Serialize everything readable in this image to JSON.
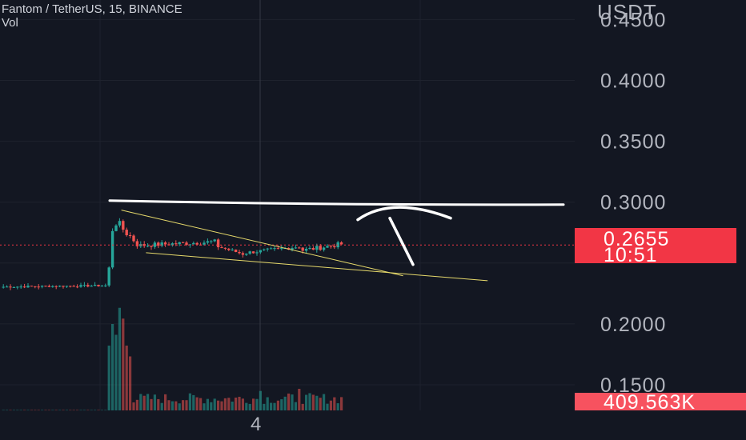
{
  "header": {
    "symbol_line": "Fantom / TetherUS, 15, BINANCE",
    "volume_label": "Vol"
  },
  "price_axis": {
    "title": "USDT",
    "ticks": [
      "0.4500",
      "0.4000",
      "0.3500",
      "0.3000",
      "0.2000",
      "0.1500"
    ]
  },
  "time_axis": {
    "ticks": [
      "4"
    ]
  },
  "last_price_tag": {
    "price": "0.2655",
    "countdown": "10:51"
  },
  "volume_tag": {
    "value": "409.563K"
  },
  "colors": {
    "background": "#131722",
    "up": "#26a69a",
    "down": "#ef5350",
    "price_tag": "#f23645",
    "trendline": "#e6d96b",
    "drawing": "#ffffff"
  },
  "chart_data": {
    "type": "candlestick",
    "title": "Fantom / TetherUS, 15, BINANCE",
    "y_unit": "USDT",
    "ylim": [
      0.129,
      0.466
    ],
    "y_ticks": [
      0.15,
      0.2,
      0.3,
      0.35,
      0.4,
      0.45
    ],
    "x_ticks": [
      "4"
    ],
    "last_price": 0.2655,
    "price_segments": [
      {
        "from_bar": 0,
        "to_bar": 29,
        "start": 0.2305,
        "end": 0.2315,
        "noise": 0.0008
      },
      {
        "from_bar": 30,
        "to_bar": 31,
        "start": 0.245,
        "end": 0.278,
        "noise": 0.004
      },
      {
        "from_bar": 32,
        "to_bar": 38,
        "start": 0.2835,
        "end": 0.2665,
        "noise": 0.004
      },
      {
        "from_bar": 39,
        "to_bar": 60,
        "start": 0.2645,
        "end": 0.2675,
        "noise": 0.002
      },
      {
        "from_bar": 61,
        "to_bar": 68,
        "start": 0.2635,
        "end": 0.2575,
        "noise": 0.0015
      },
      {
        "from_bar": 69,
        "to_bar": 84,
        "start": 0.2585,
        "end": 0.2635,
        "noise": 0.0015
      },
      {
        "from_bar": 85,
        "to_bar": 96,
        "start": 0.2605,
        "end": 0.2655,
        "noise": 0.002
      }
    ],
    "volume_peaks": [
      {
        "bar": 30,
        "value": 0.6
      },
      {
        "bar": 31,
        "value": 0.8
      },
      {
        "bar": 32,
        "value": 0.7
      },
      {
        "bar": 33,
        "value": 0.95
      },
      {
        "bar": 34,
        "value": 0.85
      },
      {
        "bar": 35,
        "value": 0.6
      },
      {
        "bar": 36,
        "value": 0.5
      },
      {
        "bar": 84,
        "value": 0.2
      },
      {
        "bar": 73,
        "value": 0.18
      }
    ],
    "volume_base": 0.06,
    "drawings": {
      "resistance_level": 0.3,
      "upper_trendline": [
        [
          34,
          0.2935
        ],
        [
          114,
          0.2395
        ]
      ],
      "lower_trendline": [
        [
          41,
          0.2585
        ],
        [
          138,
          0.2355
        ]
      ],
      "arrow_target": 0.3
    }
  }
}
